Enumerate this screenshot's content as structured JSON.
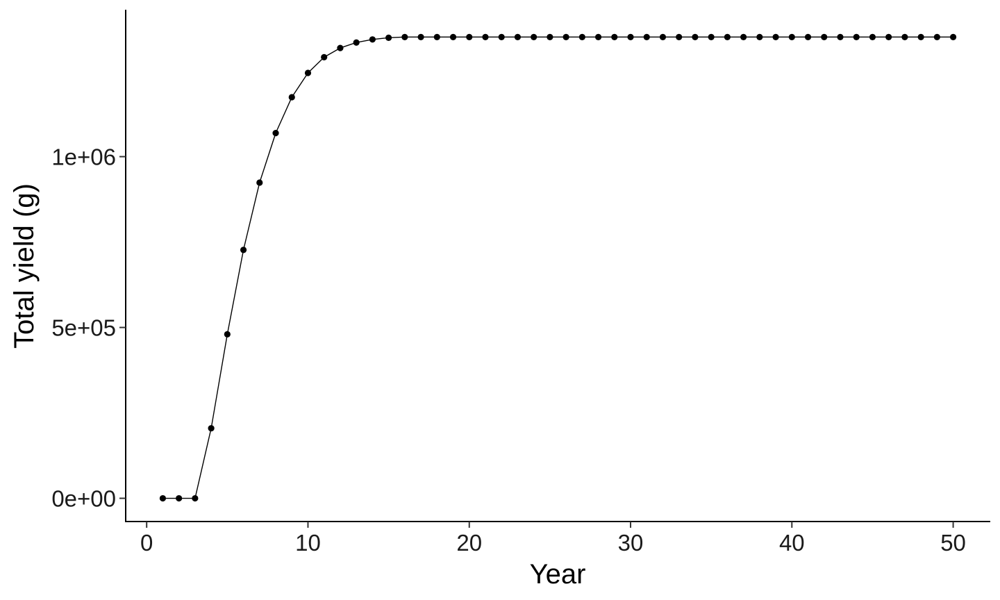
{
  "chart_data": {
    "type": "line",
    "title": "",
    "xlabel": "Year",
    "ylabel": "Total yield (g)",
    "xlim": [
      -1.3,
      52.3
    ],
    "ylim": [
      -68000,
      1430000
    ],
    "x_ticks": [
      0,
      10,
      20,
      30,
      40,
      50
    ],
    "x_tick_labels": [
      "0",
      "10",
      "20",
      "30",
      "40",
      "50"
    ],
    "y_ticks": [
      0,
      500000,
      1000000
    ],
    "y_tick_labels": [
      "0e+00",
      "5e+05",
      "1e+06"
    ],
    "grid": false,
    "legend": "none",
    "markers": true,
    "color": "#000000",
    "series": [
      {
        "x": [
          1,
          2,
          3,
          4,
          5,
          6,
          7,
          8,
          9,
          10,
          11,
          12,
          13,
          14,
          15,
          16,
          17,
          18,
          19,
          20,
          21,
          22,
          23,
          24,
          25,
          26,
          27,
          28,
          29,
          30,
          31,
          32,
          33,
          34,
          35,
          36,
          37,
          38,
          39,
          40,
          41,
          42,
          43,
          44,
          45,
          46,
          47,
          48,
          49,
          50
        ],
        "values": [
          0,
          0,
          0,
          205000,
          480000,
          727000,
          924000,
          1069000,
          1174000,
          1245000,
          1291000,
          1318000,
          1334000,
          1343000,
          1348000,
          1350000,
          1350000,
          1350000,
          1350000,
          1350000,
          1350000,
          1350000,
          1350000,
          1350000,
          1350000,
          1350000,
          1350000,
          1350000,
          1350000,
          1350000,
          1350000,
          1350000,
          1350000,
          1350000,
          1350000,
          1350000,
          1350000,
          1350000,
          1350000,
          1350000,
          1350000,
          1350000,
          1350000,
          1350000,
          1350000,
          1350000,
          1350000,
          1350000,
          1350000,
          1350000
        ]
      }
    ]
  }
}
